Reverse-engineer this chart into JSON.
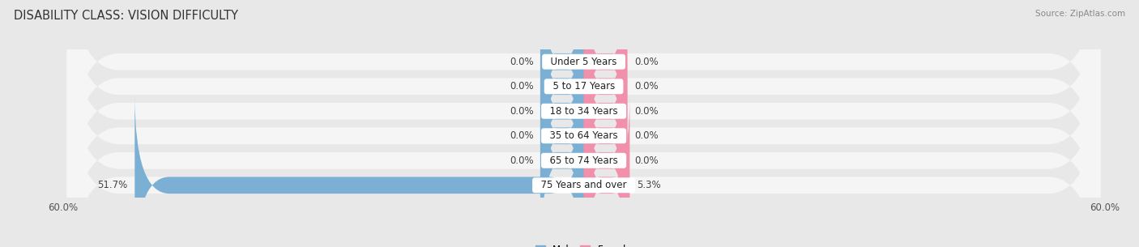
{
  "title": "DISABILITY CLASS: VISION DIFFICULTY",
  "source": "Source: ZipAtlas.com",
  "categories": [
    "Under 5 Years",
    "5 to 17 Years",
    "18 to 34 Years",
    "35 to 64 Years",
    "65 to 74 Years",
    "75 Years and over"
  ],
  "male_values": [
    0.0,
    0.0,
    0.0,
    0.0,
    0.0,
    51.7
  ],
  "female_values": [
    0.0,
    0.0,
    0.0,
    0.0,
    0.0,
    5.3
  ],
  "male_color": "#7bafd4",
  "female_color": "#f090aa",
  "axis_max": 60.0,
  "bg_color": "#e8e8e8",
  "bar_bg_color": "#f5f5f5",
  "title_fontsize": 10.5,
  "bar_height": 0.68,
  "label_fontsize": 8.5,
  "tick_fontsize": 8.5,
  "stub_size": 5.0
}
